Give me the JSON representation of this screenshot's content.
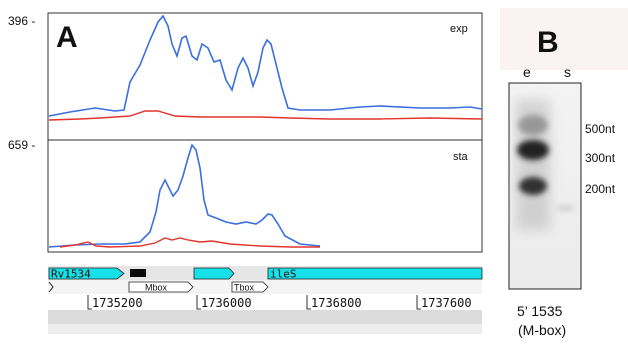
{
  "panel_a": {
    "label": "A",
    "tracks": [
      {
        "name": "exp",
        "ymax_label": "396 -"
      },
      {
        "name": "sta",
        "ymax_label": "659 -"
      }
    ],
    "genes": [
      {
        "label": "Rv1534"
      },
      {
        "label": ""
      },
      {
        "label": ""
      },
      {
        "label": "ileS"
      }
    ],
    "features": [
      {
        "label": "Mbox"
      },
      {
        "label": "Tbox"
      }
    ],
    "coordinates": [
      "1735200",
      "1736000",
      "1736800",
      "1737600"
    ],
    "colors": {
      "blue": "#3a6fe0",
      "red": "#e2342c",
      "gene": "#16e0e8"
    }
  },
  "panel_b": {
    "label": "B",
    "lanes": [
      "e",
      "s"
    ],
    "markers": [
      "500nt",
      "300nt",
      "200nt"
    ],
    "caption_line1": "5’ 1535",
    "caption_line2": "(M-box)"
  }
}
